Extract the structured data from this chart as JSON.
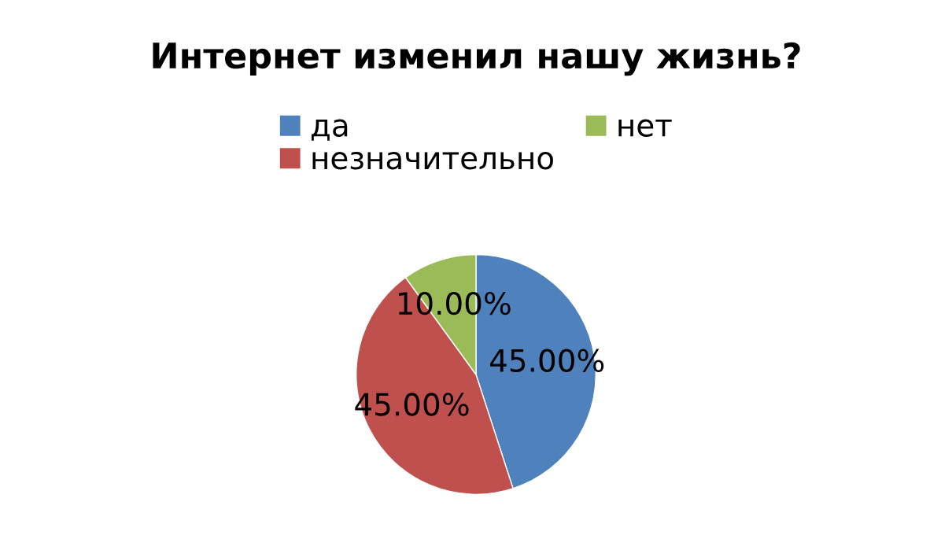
{
  "chart_data": {
    "type": "pie",
    "title": "Интернет изменил нашу жизнь?",
    "categories": [
      "да",
      "незначительно",
      "нет"
    ],
    "values": [
      45,
      45,
      10
    ],
    "colors": [
      "#4f81bd",
      "#c0504d",
      "#9bbb59"
    ],
    "value_labels": [
      "45.00%",
      "45.00%",
      "10.00%"
    ],
    "legend": "top"
  }
}
